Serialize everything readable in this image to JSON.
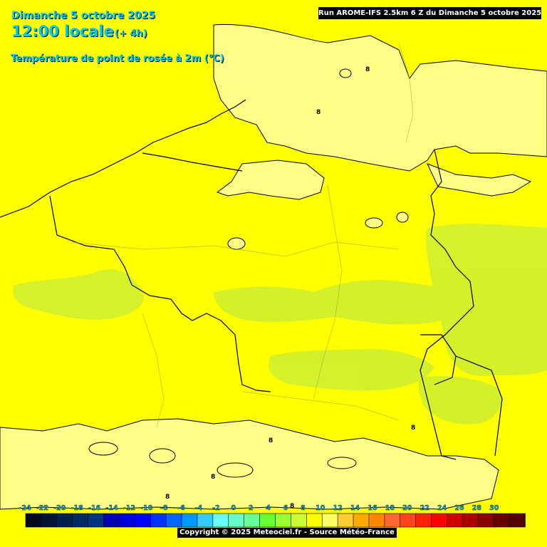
{
  "header": {
    "date": "Dimanche 5 octobre 2025",
    "time": "12:00 locale",
    "lead": "(+ 4h)",
    "parameter": "Température de point de rosée à 2m (°C)",
    "run": "Run AROME-IFS 2.5km 6 Z du Dimanche 5 octobre 2025"
  },
  "contour_labels": [
    "8",
    "8",
    "8",
    "8",
    "8",
    "8",
    "8"
  ],
  "legend": {
    "ticks": [
      "-24",
      "-22",
      "-20",
      "-18",
      "-16",
      "-14",
      "-12",
      "-10",
      "-8",
      "-6",
      "-4",
      "-2",
      "0",
      "2",
      "4",
      "6",
      "8",
      "10",
      "12",
      "14",
      "16",
      "18",
      "20",
      "22",
      "24",
      "26",
      "28",
      "30"
    ],
    "colors": [
      "#000a1f",
      "#001533",
      "#00204d",
      "#002a66",
      "#003380",
      "#0000b3",
      "#0000dd",
      "#0000ff",
      "#0033ff",
      "#0066ff",
      "#0099ff",
      "#33ccff",
      "#66ffff",
      "#66ffcc",
      "#66ff99",
      "#66ff33",
      "#99ff33",
      "#ccff33",
      "#ffff00",
      "#ffff66",
      "#ffcc33",
      "#ffaa00",
      "#ff8800",
      "#ff6633",
      "#ff4422",
      "#ff2200",
      "#ff0000",
      "#cc0000",
      "#aa0000",
      "#880000",
      "#660000",
      "#550000"
    ],
    "copyright": "Copyright © 2025 Meteociel.fr - Source Météo-France"
  },
  "map_colors": {
    "base": "#ffff00",
    "lower_dewpoint": "#ffff88",
    "higher_dewpoint": "#ccee33"
  }
}
